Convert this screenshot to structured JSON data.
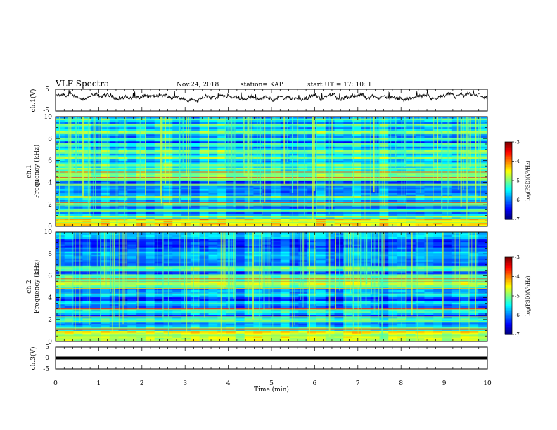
{
  "header": {
    "title": "VLF Spectra",
    "date": "Nov.24, 2018",
    "station": "station= KAP",
    "start": "start  UT =   17: 10: 1"
  },
  "chart_data": [
    {
      "type": "line",
      "panel": "ch1-waveform",
      "ylabel": "ch.1(V)",
      "ylim": [
        -5,
        5
      ],
      "y_ticks": [
        "5",
        "-5"
      ],
      "xlim": [
        0,
        10
      ],
      "color": "#000000"
    },
    {
      "type": "heatmap",
      "panel": "ch1-spectrogram",
      "ylabel": "ch.1\nFrequency (kHz)",
      "ylabel_top": "ch.1",
      "ylabel_main": "Frequency (kHz)",
      "ylim": [
        0,
        10
      ],
      "y_ticks": [
        "0",
        "2",
        "4",
        "6",
        "8",
        "10"
      ],
      "xlim": [
        0,
        10
      ],
      "colorbar": {
        "label": "log(PSD)(V²/Hz)",
        "range": [
          -7,
          -3
        ],
        "ticks": [
          "-3",
          "-4",
          "-5",
          "-6",
          "-7"
        ]
      }
    },
    {
      "type": "heatmap",
      "panel": "ch2-spectrogram",
      "ylabel_top": "ch.2",
      "ylabel_main": "Frequency (kHz)",
      "ylim": [
        0,
        10
      ],
      "y_ticks": [
        "0",
        "2",
        "4",
        "6",
        "8",
        "10"
      ],
      "xlim": [
        0,
        10
      ],
      "colorbar": {
        "label": "log(PSD)(V²/Hz)",
        "range": [
          -7,
          -3
        ],
        "ticks": [
          "-3",
          "-4",
          "-5",
          "-6",
          "-7"
        ]
      }
    },
    {
      "type": "line",
      "panel": "ch3-waveform",
      "ylabel": "ch.3(V)",
      "ylim": [
        -5,
        5
      ],
      "y_ticks": [
        "5",
        "0",
        "-5"
      ],
      "xlim": [
        0,
        10
      ],
      "constant_value": 0,
      "color": "#000000"
    }
  ],
  "xaxis": {
    "label": "Time (min)",
    "ticks": [
      "0",
      "1",
      "2",
      "3",
      "4",
      "5",
      "6",
      "7",
      "8",
      "9",
      "10"
    ]
  },
  "colors": {
    "background": "#ffffff",
    "axes": "#000000",
    "spectrogram_low": "#00007f",
    "spectrogram_high": "#ff0000"
  }
}
